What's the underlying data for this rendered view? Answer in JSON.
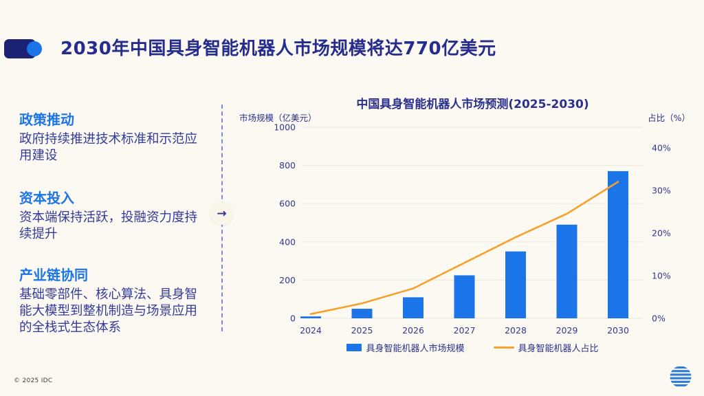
{
  "slide": {
    "title": "2030年中国具身智能机器人市场规模将达770亿美元",
    "copyright": "© 2025 IDC",
    "accent_color": "#1B74E8",
    "deco_navy_color": "#1B2173",
    "arrow_glyph": "→"
  },
  "left_panel": {
    "items": [
      {
        "heading": "政策推动",
        "body": "政府持续推进技术标准和示范应用建设"
      },
      {
        "heading": "资本投入",
        "body": "资本端保持活跃，投融资力度持续提升"
      },
      {
        "heading": "产业链协同",
        "body": "基础零部件、核心算法、具身智能大模型到整机制造与场景应用的全栈式生态体系"
      }
    ]
  },
  "chart_data": {
    "type": "combo-bar-line",
    "title": "中国具身智能机器人市场预测(2025-2030)",
    "left_axis_label": "市场规模（亿美元）",
    "right_axis_label": "占比（%）",
    "categories": [
      "2024",
      "2025",
      "2026",
      "2027",
      "2028",
      "2029",
      "2030"
    ],
    "series": [
      {
        "name": "具身智能机器人市场规模",
        "type": "bar",
        "axis": "left",
        "color": "#1B74E8",
        "values": [
          10,
          50,
          110,
          225,
          350,
          490,
          770
        ]
      },
      {
        "name": "具身智能机器人占比",
        "type": "line",
        "axis": "right",
        "color": "#F5A12B",
        "values": [
          1,
          3.5,
          7,
          13,
          19,
          24.5,
          32
        ],
        "unit": "%"
      }
    ],
    "left_axis": {
      "min": 0,
      "max": 1000,
      "ticks": [
        0,
        200,
        400,
        600,
        800,
        1000
      ]
    },
    "right_axis": {
      "min": 0,
      "max_at_plot_top": 44.8,
      "ticks": [
        0,
        10,
        20,
        30,
        40
      ],
      "tick_suffix": "%"
    },
    "grid": "horizontal",
    "grid_color": "#EAEAE1",
    "tick_color": "#32368F",
    "legend_position": "bottom"
  }
}
